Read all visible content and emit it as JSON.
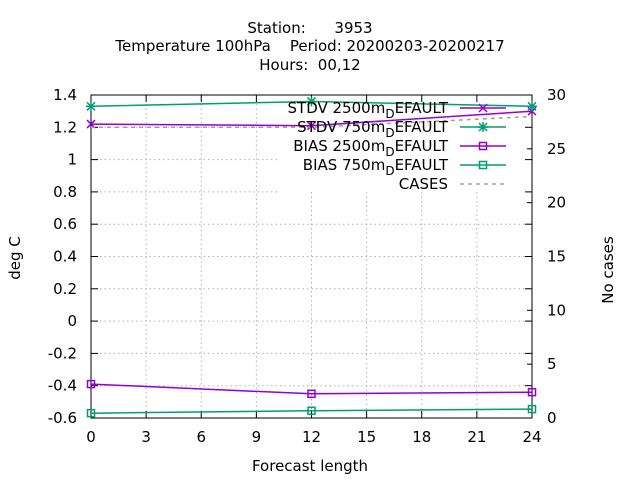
{
  "chart_data": {
    "type": "line",
    "title_lines": [
      "Station:      3953",
      "Temperature 100hPa    Period: 20200203-20200217",
      "Hours:  00,12"
    ],
    "xlabel": "Forecast length",
    "ylabel": "deg C",
    "y2label": "No cases",
    "xlim": [
      0,
      24
    ],
    "ylim": [
      -0.6,
      1.4
    ],
    "y2lim": [
      0,
      30
    ],
    "x_ticks": [
      0,
      3,
      6,
      9,
      12,
      15,
      18,
      21,
      24
    ],
    "y_ticks": [
      -0.6,
      -0.4,
      -0.2,
      0,
      0.2,
      0.4,
      0.6,
      0.8,
      1,
      1.2,
      1.4
    ],
    "y_tick_labels": [
      "-0.6",
      "-0.4",
      "-0.2",
      "0",
      "0.2",
      "0.4",
      "0.6",
      "0.8",
      "1",
      "1.2",
      "1.4"
    ],
    "y2_ticks": [
      0,
      5,
      10,
      15,
      20,
      25,
      30
    ],
    "grid": true,
    "legend_position": "top-right",
    "series": [
      {
        "legend_prefix": "STDV 2500m",
        "legend_sub": "D",
        "legend_suffix": "EFAULT",
        "color": "#9400d3",
        "marker": "x",
        "axis": "y",
        "x": [
          0,
          12,
          24
        ],
        "values": [
          1.22,
          1.21,
          1.3
        ]
      },
      {
        "legend_prefix": "STDV 750m",
        "legend_sub": "D",
        "legend_suffix": "EFAULT",
        "color": "#009e73",
        "marker": "star",
        "axis": "y",
        "x": [
          0,
          12,
          24
        ],
        "values": [
          1.33,
          1.36,
          1.33
        ]
      },
      {
        "legend_prefix": "BIAS 2500m",
        "legend_sub": "D",
        "legend_suffix": "EFAULT",
        "color": "#9400d3",
        "marker": "square",
        "axis": "y",
        "x": [
          0,
          12,
          24
        ],
        "values": [
          -0.39,
          -0.45,
          -0.44
        ]
      },
      {
        "legend_prefix": "BIAS 750m",
        "legend_sub": "D",
        "legend_suffix": "EFAULT",
        "color": "#009e73",
        "marker": "square",
        "axis": "y",
        "x": [
          0,
          12,
          24
        ],
        "values": [
          -0.57,
          -0.555,
          -0.545
        ]
      },
      {
        "legend_prefix": "CASES",
        "legend_sub": "",
        "legend_suffix": "",
        "color": "#a0a0a0",
        "marker": "none",
        "dashed": true,
        "axis": "y2",
        "x": [
          0,
          12,
          24
        ],
        "values": [
          27,
          27,
          28
        ]
      }
    ]
  }
}
